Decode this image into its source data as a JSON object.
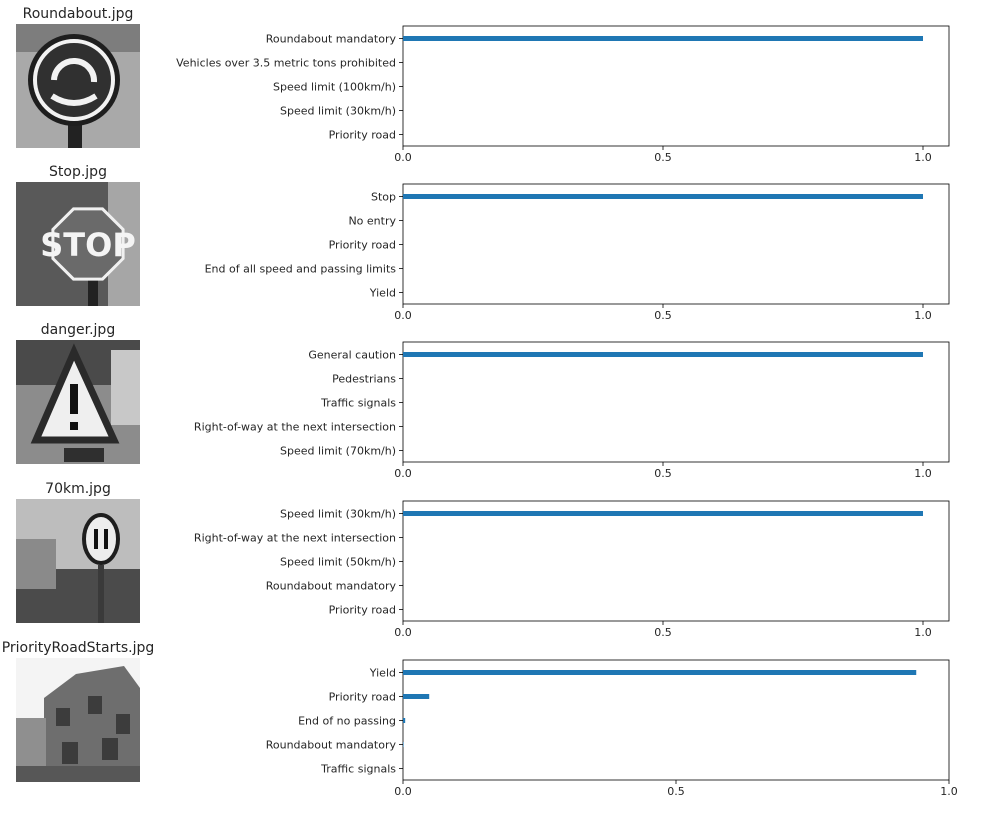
{
  "tick_labels": [
    "0.0",
    "0.5",
    "1.0"
  ],
  "bar_color": "#1f77b4",
  "chart_data": [
    {
      "type": "bar",
      "orientation": "horizontal",
      "image_title": "Roundabout.jpg",
      "image_icon": "roundabout-sign-thumbnail",
      "categories": [
        "Roundabout mandatory",
        "Vehicles over 3.5 metric tons prohibited",
        "Speed limit (100km/h)",
        "Speed limit (30km/h)",
        "Priority road"
      ],
      "values": [
        1.0,
        0.0,
        0.0,
        0.0,
        0.0
      ],
      "xlim": [
        0,
        1.05
      ],
      "xticks": [
        0.0,
        0.5,
        1.0
      ],
      "grid": false
    },
    {
      "type": "bar",
      "orientation": "horizontal",
      "image_title": "Stop.jpg",
      "image_icon": "stop-sign-thumbnail",
      "categories": [
        "Stop",
        "No entry",
        "Priority road",
        "End of all speed and passing limits",
        "Yield"
      ],
      "values": [
        1.0,
        0.0,
        0.0,
        0.0,
        0.0
      ],
      "xlim": [
        0,
        1.05
      ],
      "xticks": [
        0.0,
        0.5,
        1.0
      ],
      "grid": false
    },
    {
      "type": "bar",
      "orientation": "horizontal",
      "image_title": "danger.jpg",
      "image_icon": "warning-triangle-thumbnail",
      "categories": [
        "General caution",
        "Pedestrians",
        "Traffic signals",
        "Right-of-way at the next intersection",
        "Speed limit (70km/h)"
      ],
      "values": [
        1.0,
        0.0,
        0.0,
        0.0,
        0.0
      ],
      "xlim": [
        0,
        1.05
      ],
      "xticks": [
        0.0,
        0.5,
        1.0
      ],
      "grid": false
    },
    {
      "type": "bar",
      "orientation": "horizontal",
      "image_title": "70km.jpg",
      "image_icon": "speed-limit-sign-thumbnail",
      "categories": [
        "Speed limit (30km/h)",
        "Right-of-way at the next intersection",
        "Speed limit (50km/h)",
        "Roundabout mandatory",
        "Priority road"
      ],
      "values": [
        1.0,
        0.0,
        0.0,
        0.0,
        0.0
      ],
      "xlim": [
        0,
        1.05
      ],
      "xticks": [
        0.0,
        0.5,
        1.0
      ],
      "grid": false
    },
    {
      "type": "bar",
      "orientation": "horizontal",
      "image_title": "PriorityRoadStarts.jpg",
      "image_icon": "buildings-thumbnail",
      "categories": [
        "Yield",
        "Priority road",
        "End of no passing",
        "Roundabout mandatory",
        "Traffic signals"
      ],
      "values": [
        0.94,
        0.048,
        0.004,
        0.001,
        0.0
      ],
      "xlim": [
        0,
        1.0
      ],
      "xticks": [
        0.0,
        0.5,
        1.0
      ],
      "grid": false
    }
  ]
}
